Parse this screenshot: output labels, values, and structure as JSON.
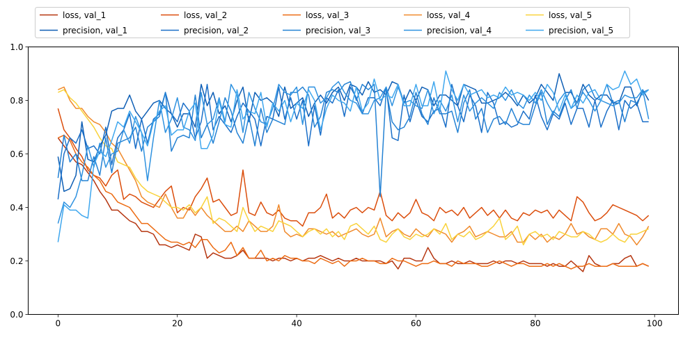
{
  "chart_data": {
    "type": "line",
    "xlim": [
      -5,
      104
    ],
    "ylim": [
      0.0,
      1.0
    ],
    "xticks": [
      0,
      20,
      40,
      60,
      80,
      100
    ],
    "yticks": [
      0.0,
      0.2,
      0.4,
      0.6,
      0.8,
      1.0
    ],
    "xtick_labels": [
      "0",
      "20",
      "40",
      "60",
      "80",
      "100"
    ],
    "ytick_labels": [
      "0.0",
      "0.2",
      "0.4",
      "0.6",
      "0.8",
      "1.0"
    ],
    "grid": false,
    "legend_placement": "top, above plot, 5 columns",
    "x": [
      0,
      1,
      2,
      3,
      4,
      5,
      6,
      7,
      8,
      9,
      10,
      11,
      12,
      13,
      14,
      15,
      16,
      17,
      18,
      19,
      20,
      21,
      22,
      23,
      24,
      25,
      26,
      27,
      28,
      29,
      30,
      31,
      32,
      33,
      34,
      35,
      36,
      37,
      38,
      39,
      40,
      41,
      42,
      43,
      44,
      45,
      46,
      47,
      48,
      49,
      50,
      51,
      52,
      53,
      54,
      55,
      56,
      57,
      58,
      59,
      60,
      61,
      62,
      63,
      64,
      65,
      66,
      67,
      68,
      69,
      70,
      71,
      72,
      73,
      74,
      75,
      76,
      77,
      78,
      79,
      80,
      81,
      82,
      83,
      84,
      85,
      86,
      87,
      88,
      89,
      90,
      91,
      92,
      93,
      94,
      95,
      96,
      97,
      98,
      99
    ],
    "series": [
      {
        "name": "loss, val_1",
        "color": "#b5350f",
        "values": [
          0.66,
          0.63,
          0.6,
          0.57,
          0.56,
          0.53,
          0.5,
          0.46,
          0.43,
          0.39,
          0.39,
          0.37,
          0.35,
          0.34,
          0.31,
          0.31,
          0.3,
          0.26,
          0.26,
          0.25,
          0.26,
          0.25,
          0.24,
          0.3,
          0.29,
          0.21,
          0.23,
          0.22,
          0.21,
          0.21,
          0.22,
          0.24,
          0.21,
          0.21,
          0.21,
          0.21,
          0.2,
          0.21,
          0.21,
          0.2,
          0.21,
          0.2,
          0.21,
          0.21,
          0.22,
          0.21,
          0.2,
          0.21,
          0.2,
          0.2,
          0.21,
          0.2,
          0.2,
          0.2,
          0.2,
          0.19,
          0.2,
          0.17,
          0.21,
          0.21,
          0.2,
          0.2,
          0.25,
          0.21,
          0.19,
          0.19,
          0.2,
          0.19,
          0.19,
          0.2,
          0.19,
          0.19,
          0.19,
          0.2,
          0.19,
          0.2,
          0.2,
          0.19,
          0.2,
          0.19,
          0.19,
          0.19,
          0.18,
          0.19,
          0.18,
          0.18,
          0.2,
          0.18,
          0.16,
          0.22,
          0.19,
          0.18,
          0.18,
          0.19,
          0.19,
          0.21,
          0.22,
          0.18,
          0.19,
          0.18
        ]
      },
      {
        "name": "loss, val_2",
        "color": "#db4d0b",
        "values": [
          0.77,
          0.69,
          0.66,
          0.62,
          0.59,
          0.54,
          0.52,
          0.51,
          0.48,
          0.52,
          0.54,
          0.43,
          0.45,
          0.44,
          0.42,
          0.41,
          0.4,
          0.43,
          0.46,
          0.48,
          0.38,
          0.4,
          0.39,
          0.44,
          0.47,
          0.51,
          0.42,
          0.43,
          0.4,
          0.37,
          0.38,
          0.54,
          0.38,
          0.37,
          0.42,
          0.38,
          0.37,
          0.39,
          0.36,
          0.35,
          0.35,
          0.33,
          0.38,
          0.38,
          0.4,
          0.45,
          0.36,
          0.38,
          0.36,
          0.39,
          0.4,
          0.38,
          0.4,
          0.39,
          0.46,
          0.37,
          0.35,
          0.38,
          0.36,
          0.38,
          0.43,
          0.38,
          0.37,
          0.35,
          0.4,
          0.38,
          0.39,
          0.37,
          0.4,
          0.36,
          0.38,
          0.4,
          0.37,
          0.39,
          0.36,
          0.39,
          0.36,
          0.35,
          0.38,
          0.37,
          0.39,
          0.38,
          0.39,
          0.36,
          0.39,
          0.37,
          0.35,
          0.44,
          0.42,
          0.38,
          0.35,
          0.36,
          0.38,
          0.41,
          0.4,
          0.39,
          0.38,
          0.37,
          0.35,
          0.37
        ]
      },
      {
        "name": "loss, val_3",
        "color": "#ec6b12",
        "values": [
          0.66,
          0.67,
          0.65,
          0.6,
          0.57,
          0.55,
          0.52,
          0.5,
          0.46,
          0.45,
          0.42,
          0.41,
          0.4,
          0.37,
          0.34,
          0.34,
          0.32,
          0.3,
          0.28,
          0.27,
          0.27,
          0.26,
          0.27,
          0.25,
          0.28,
          0.28,
          0.25,
          0.23,
          0.24,
          0.27,
          0.22,
          0.25,
          0.21,
          0.21,
          0.24,
          0.2,
          0.21,
          0.2,
          0.22,
          0.21,
          0.21,
          0.2,
          0.2,
          0.19,
          0.21,
          0.2,
          0.19,
          0.2,
          0.18,
          0.2,
          0.2,
          0.21,
          0.2,
          0.2,
          0.19,
          0.19,
          0.21,
          0.2,
          0.2,
          0.19,
          0.18,
          0.19,
          0.19,
          0.2,
          0.19,
          0.19,
          0.18,
          0.2,
          0.19,
          0.19,
          0.19,
          0.18,
          0.18,
          0.19,
          0.2,
          0.19,
          0.18,
          0.19,
          0.19,
          0.18,
          0.18,
          0.18,
          0.19,
          0.18,
          0.19,
          0.18,
          0.17,
          0.18,
          0.18,
          0.19,
          0.18,
          0.18,
          0.18,
          0.19,
          0.18,
          0.18,
          0.18,
          0.18,
          0.19,
          0.18
        ]
      },
      {
        "name": "loss, val_4",
        "color": "#f08a2c",
        "values": [
          0.84,
          0.85,
          0.8,
          0.77,
          0.77,
          0.74,
          0.72,
          0.71,
          0.68,
          0.64,
          0.62,
          0.58,
          0.54,
          0.5,
          0.44,
          0.42,
          0.41,
          0.4,
          0.45,
          0.4,
          0.36,
          0.36,
          0.4,
          0.37,
          0.4,
          0.37,
          0.35,
          0.33,
          0.31,
          0.31,
          0.33,
          0.31,
          0.35,
          0.33,
          0.31,
          0.31,
          0.33,
          0.41,
          0.31,
          0.29,
          0.3,
          0.29,
          0.32,
          0.32,
          0.31,
          0.3,
          0.31,
          0.29,
          0.3,
          0.31,
          0.32,
          0.3,
          0.29,
          0.3,
          0.36,
          0.29,
          0.31,
          0.32,
          0.3,
          0.29,
          0.32,
          0.3,
          0.29,
          0.32,
          0.31,
          0.3,
          0.27,
          0.3,
          0.31,
          0.33,
          0.29,
          0.3,
          0.31,
          0.3,
          0.29,
          0.29,
          0.31,
          0.27,
          0.27,
          0.3,
          0.28,
          0.3,
          0.27,
          0.29,
          0.28,
          0.3,
          0.34,
          0.3,
          0.31,
          0.29,
          0.28,
          0.32,
          0.32,
          0.3,
          0.34,
          0.3,
          0.29,
          0.26,
          0.29,
          0.33
        ]
      },
      {
        "name": "loss, val_5",
        "color": "#f9d23a",
        "values": [
          0.83,
          0.84,
          0.81,
          0.79,
          0.76,
          0.73,
          0.7,
          0.66,
          0.63,
          0.62,
          0.57,
          0.56,
          0.55,
          0.51,
          0.48,
          0.46,
          0.45,
          0.44,
          0.42,
          0.4,
          0.4,
          0.39,
          0.41,
          0.38,
          0.4,
          0.44,
          0.34,
          0.36,
          0.35,
          0.33,
          0.31,
          0.4,
          0.35,
          0.31,
          0.33,
          0.32,
          0.31,
          0.35,
          0.34,
          0.33,
          0.31,
          0.29,
          0.31,
          0.32,
          0.3,
          0.32,
          0.29,
          0.31,
          0.28,
          0.33,
          0.34,
          0.32,
          0.3,
          0.33,
          0.28,
          0.27,
          0.3,
          0.32,
          0.29,
          0.28,
          0.3,
          0.29,
          0.3,
          0.32,
          0.3,
          0.34,
          0.28,
          0.3,
          0.29,
          0.31,
          0.28,
          0.29,
          0.31,
          0.33,
          0.36,
          0.28,
          0.3,
          0.33,
          0.26,
          0.3,
          0.31,
          0.29,
          0.3,
          0.28,
          0.31,
          0.3,
          0.29,
          0.29,
          0.31,
          0.3,
          0.28,
          0.27,
          0.28,
          0.3,
          0.28,
          0.27,
          0.3,
          0.3,
          0.31,
          0.32
        ]
      },
      {
        "name": "precision, val_1",
        "color": "#0f5fb5",
        "values": [
          0.59,
          0.46,
          0.47,
          0.52,
          0.72,
          0.58,
          0.57,
          0.63,
          0.67,
          0.76,
          0.77,
          0.77,
          0.82,
          0.76,
          0.73,
          0.76,
          0.79,
          0.8,
          0.77,
          0.75,
          0.7,
          0.75,
          0.75,
          0.7,
          0.86,
          0.78,
          0.83,
          0.75,
          0.78,
          0.72,
          0.8,
          0.85,
          0.72,
          0.83,
          0.8,
          0.81,
          0.79,
          0.74,
          0.85,
          0.77,
          0.79,
          0.81,
          0.74,
          0.79,
          0.82,
          0.79,
          0.83,
          0.85,
          0.8,
          0.86,
          0.85,
          0.82,
          0.87,
          0.83,
          0.84,
          0.82,
          0.87,
          0.86,
          0.79,
          0.84,
          0.8,
          0.85,
          0.84,
          0.78,
          0.82,
          0.82,
          0.8,
          0.78,
          0.86,
          0.85,
          0.84,
          0.79,
          0.79,
          0.8,
          0.81,
          0.83,
          0.81,
          0.78,
          0.82,
          0.79,
          0.81,
          0.86,
          0.83,
          0.8,
          0.9,
          0.83,
          0.83,
          0.79,
          0.86,
          0.82,
          0.8,
          0.82,
          0.82,
          0.79,
          0.79,
          0.85,
          0.85,
          0.78,
          0.84,
          0.8
        ]
      },
      {
        "name": "precision, val_2",
        "color": "#1b6fc8",
        "values": [
          0.43,
          0.6,
          0.66,
          0.64,
          0.69,
          0.62,
          0.63,
          0.6,
          0.7,
          0.56,
          0.66,
          0.69,
          0.75,
          0.62,
          0.73,
          0.64,
          0.73,
          0.75,
          0.83,
          0.75,
          0.72,
          0.79,
          0.76,
          0.66,
          0.72,
          0.86,
          0.69,
          0.74,
          0.71,
          0.68,
          0.74,
          0.79,
          0.76,
          0.73,
          0.63,
          0.74,
          0.73,
          0.85,
          0.73,
          0.81,
          0.73,
          0.8,
          0.63,
          0.78,
          0.67,
          0.81,
          0.79,
          0.84,
          0.74,
          0.85,
          0.81,
          0.75,
          0.81,
          0.81,
          0.78,
          0.85,
          0.66,
          0.65,
          0.82,
          0.72,
          0.8,
          0.74,
          0.72,
          0.76,
          0.77,
          0.7,
          0.86,
          0.78,
          0.72,
          0.82,
          0.78,
          0.68,
          0.83,
          0.79,
          0.71,
          0.72,
          0.7,
          0.71,
          0.76,
          0.73,
          0.82,
          0.74,
          0.69,
          0.75,
          0.73,
          0.79,
          0.71,
          0.77,
          0.77,
          0.7,
          0.8,
          0.7,
          0.76,
          0.8,
          0.69,
          0.8,
          0.77,
          0.79,
          0.72,
          0.72
        ]
      },
      {
        "name": "precision, val_3",
        "color": "#2482d4",
        "values": [
          0.51,
          0.67,
          0.57,
          0.6,
          0.5,
          0.5,
          0.59,
          0.52,
          0.66,
          0.53,
          0.64,
          0.65,
          0.66,
          0.7,
          0.61,
          0.7,
          0.72,
          0.74,
          0.83,
          0.61,
          0.66,
          0.67,
          0.66,
          0.82,
          0.66,
          0.71,
          0.64,
          0.72,
          0.81,
          0.76,
          0.68,
          0.64,
          0.74,
          0.63,
          0.77,
          0.68,
          0.73,
          0.72,
          0.71,
          0.83,
          0.83,
          0.85,
          0.82,
          0.7,
          0.74,
          0.83,
          0.84,
          0.83,
          0.86,
          0.87,
          0.8,
          0.86,
          0.84,
          0.86,
          0.44,
          0.84,
          0.72,
          0.69,
          0.7,
          0.74,
          0.83,
          0.75,
          0.71,
          0.81,
          0.75,
          0.75,
          0.76,
          0.68,
          0.79,
          0.84,
          0.73,
          0.77,
          0.68,
          0.73,
          0.74,
          0.71,
          0.77,
          0.72,
          0.71,
          0.71,
          0.78,
          0.83,
          0.71,
          0.76,
          0.74,
          0.8,
          0.84,
          0.77,
          0.84,
          0.86,
          0.81,
          0.8,
          0.86,
          0.79,
          0.8,
          0.72,
          0.8,
          0.79,
          0.83,
          0.84
        ]
      },
      {
        "name": "precision, val_4",
        "color": "#2f92e0",
        "values": [
          0.34,
          0.42,
          0.4,
          0.44,
          0.52,
          0.63,
          0.55,
          0.64,
          0.55,
          0.6,
          0.61,
          0.69,
          0.64,
          0.74,
          0.68,
          0.5,
          0.66,
          0.8,
          0.68,
          0.73,
          0.81,
          0.7,
          0.69,
          0.65,
          0.83,
          0.71,
          0.73,
          0.81,
          0.72,
          0.86,
          0.82,
          0.68,
          0.83,
          0.77,
          0.72,
          0.71,
          0.77,
          0.86,
          0.83,
          0.82,
          0.85,
          0.71,
          0.85,
          0.85,
          0.79,
          0.81,
          0.85,
          0.87,
          0.83,
          0.8,
          0.79,
          0.75,
          0.75,
          0.8,
          0.81,
          0.85,
          0.78,
          0.85,
          0.79,
          0.8,
          0.78,
          0.77,
          0.84,
          0.75,
          0.8,
          0.76,
          0.82,
          0.72,
          0.82,
          0.76,
          0.79,
          0.81,
          0.79,
          0.77,
          0.83,
          0.8,
          0.84,
          0.79,
          0.77,
          0.82,
          0.79,
          0.84,
          0.79,
          0.75,
          0.8,
          0.83,
          0.77,
          0.79,
          0.83,
          0.8,
          0.76,
          0.8,
          0.79,
          0.78,
          0.79,
          0.82,
          0.81,
          0.81,
          0.84,
          0.73
        ]
      },
      {
        "name": "precision, val_5",
        "color": "#3fa7ee",
        "values": [
          0.27,
          0.41,
          0.39,
          0.39,
          0.37,
          0.36,
          0.56,
          0.61,
          0.59,
          0.65,
          0.72,
          0.7,
          0.76,
          0.72,
          0.68,
          0.63,
          0.72,
          0.76,
          0.78,
          0.67,
          0.69,
          0.69,
          0.76,
          0.79,
          0.62,
          0.62,
          0.67,
          0.8,
          0.71,
          0.7,
          0.84,
          0.73,
          0.76,
          0.75,
          0.83,
          0.7,
          0.79,
          0.76,
          0.8,
          0.72,
          0.79,
          0.77,
          0.84,
          0.8,
          0.69,
          0.77,
          0.82,
          0.8,
          0.79,
          0.76,
          0.85,
          0.76,
          0.79,
          0.88,
          0.8,
          0.82,
          0.81,
          0.86,
          0.78,
          0.78,
          0.86,
          0.78,
          0.78,
          0.87,
          0.76,
          0.91,
          0.84,
          0.8,
          0.86,
          0.82,
          0.83,
          0.84,
          0.81,
          0.82,
          0.81,
          0.85,
          0.82,
          0.83,
          0.82,
          0.8,
          0.83,
          0.8,
          0.86,
          0.83,
          0.76,
          0.82,
          0.77,
          0.82,
          0.79,
          0.83,
          0.84,
          0.8,
          0.86,
          0.84,
          0.85,
          0.91,
          0.86,
          0.88,
          0.82,
          0.84
        ]
      }
    ]
  }
}
